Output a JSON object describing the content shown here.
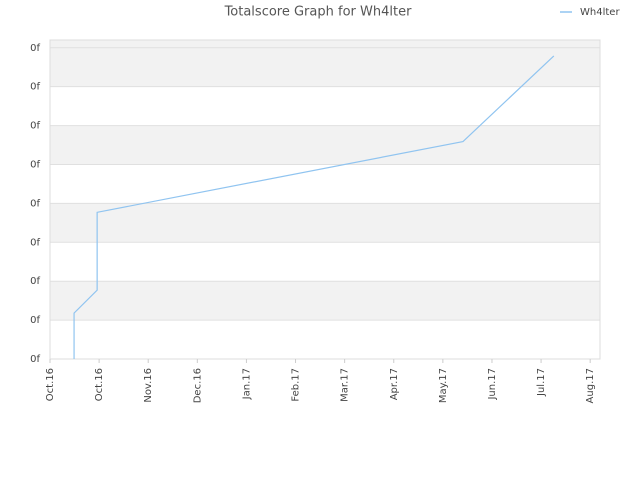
{
  "chart_data": {
    "type": "line",
    "title": "Totalscore Graph for Wh4lter",
    "x": [
      0.49,
      0.49,
      0.96,
      0.96,
      8.41,
      10.26
    ],
    "series": [
      {
        "name": "Wh4lter",
        "color": "#90c4f0",
        "values": [
          0,
          1.18,
          1.77,
          3.77,
          5.59,
          7.79
        ]
      }
    ],
    "xlim": [
      0,
      11.2
    ],
    "xticks": [
      {
        "value": 0,
        "label": "Oct.16"
      },
      {
        "value": 1,
        "label": "Oct.16"
      },
      {
        "value": 2,
        "label": "Nov.16"
      },
      {
        "value": 3,
        "label": "Dec.16"
      },
      {
        "value": 4,
        "label": "Jan.17"
      },
      {
        "value": 5,
        "label": "Feb.17"
      },
      {
        "value": 6,
        "label": "Mar.17"
      },
      {
        "value": 7,
        "label": "Apr.17"
      },
      {
        "value": 8,
        "label": "May.17"
      },
      {
        "value": 9,
        "label": "Jun.17"
      },
      {
        "value": 10,
        "label": "Jul.17"
      },
      {
        "value": 11,
        "label": "Aug.17"
      }
    ],
    "ylim": [
      0,
      8.2
    ],
    "yticks": [
      {
        "value": 0,
        "label": "0f"
      },
      {
        "value": 1,
        "label": "0f"
      },
      {
        "value": 2,
        "label": "0f"
      },
      {
        "value": 3,
        "label": "0f"
      },
      {
        "value": 4,
        "label": "0f"
      },
      {
        "value": 5,
        "label": "0f"
      },
      {
        "value": 6,
        "label": "0f"
      },
      {
        "value": 7,
        "label": "0f"
      },
      {
        "value": 8,
        "label": "0f"
      }
    ],
    "grid": true,
    "legend": "top-right"
  }
}
